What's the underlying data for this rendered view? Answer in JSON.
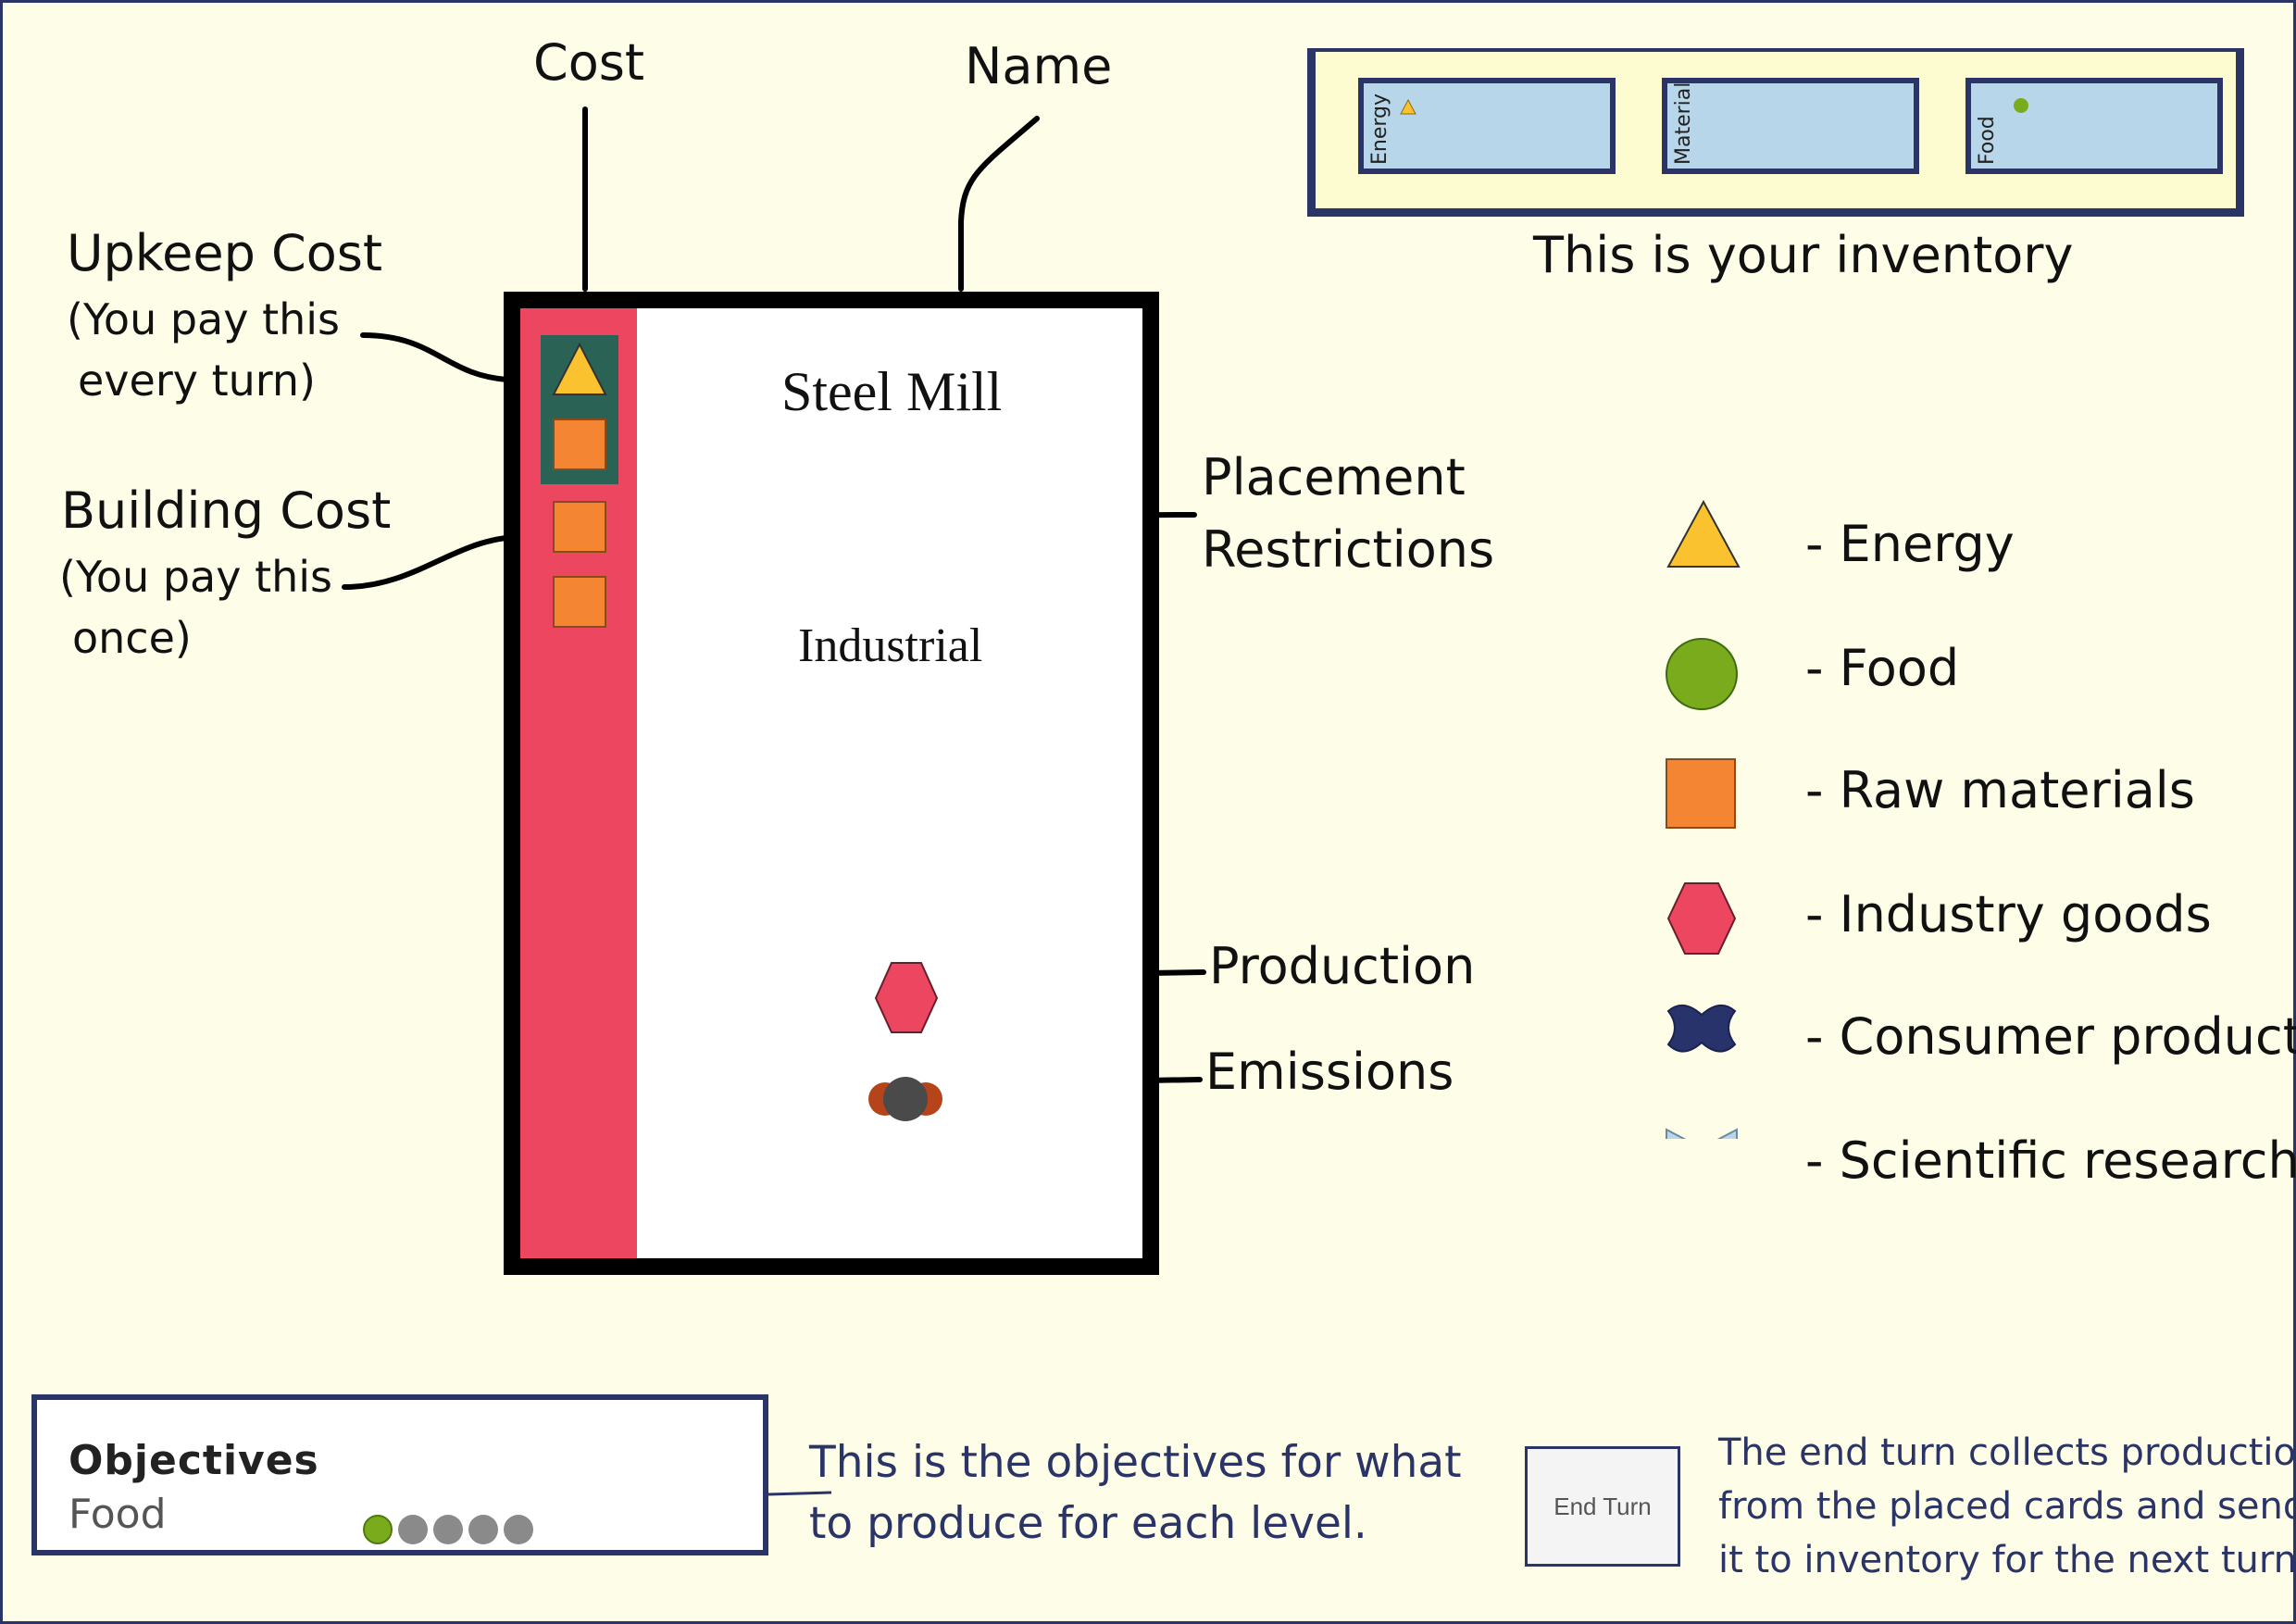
{
  "labels": {
    "cost": "Cost",
    "name": "Name",
    "upkeep_title": "Upkeep Cost",
    "upkeep_note_1": "(You pay this",
    "upkeep_note_2": "every turn)",
    "building_title": "Building Cost",
    "building_note_1": "(You pay this",
    "building_note_2": "once)",
    "placement_1": "Placement",
    "placement_2": "Restrictions",
    "production": "Production",
    "emissions": "Emissions"
  },
  "card": {
    "name": "Steel Mill",
    "restriction": "Industrial",
    "upkeep_cost": [
      "energy",
      "raw-materials"
    ],
    "building_cost": [
      "raw-materials",
      "raw-materials"
    ],
    "production": [
      "industry-goods"
    ],
    "emissions": [
      "emission"
    ]
  },
  "inventory": {
    "caption": "This is your inventory",
    "slots": [
      {
        "label": "Energy",
        "icon": "energy-icon"
      },
      {
        "label": "Material",
        "icon": ""
      },
      {
        "label": "Food",
        "icon": "food-icon"
      }
    ]
  },
  "legend": [
    {
      "icon": "energy-icon",
      "text": "- Energy"
    },
    {
      "icon": "food-icon",
      "text": "- Food"
    },
    {
      "icon": "raw-materials-icon",
      "text": "- Raw materials"
    },
    {
      "icon": "industry-goods-icon",
      "text": "- Industry goods"
    },
    {
      "icon": "consumer-products-icon",
      "text": "- Consumer products"
    },
    {
      "icon": "scientific-research-icon",
      "text": "- Scientific research"
    }
  ],
  "objectives": {
    "title": "Objectives",
    "item_label": "Food",
    "progress_done": 1,
    "progress_total": 5,
    "caption_1": "This is the objectives for what",
    "caption_2": "to produce for each level."
  },
  "end_turn": {
    "button_label": "End Turn",
    "caption_1": "The end turn collects production",
    "caption_2": "from the placed cards and sends",
    "caption_3": "it to inventory for the next turn."
  },
  "colors": {
    "navy": "#2b3466",
    "card_stripe": "#ec4660",
    "upkeep_bg": "#2a6255",
    "energy": "#f9c22e",
    "food": "#7aab1c",
    "raw_materials": "#f48532",
    "industry_goods": "#ec4660",
    "consumer_products": "#27336a",
    "scientific_research": "#b8d6ea",
    "background": "#fefee8"
  }
}
